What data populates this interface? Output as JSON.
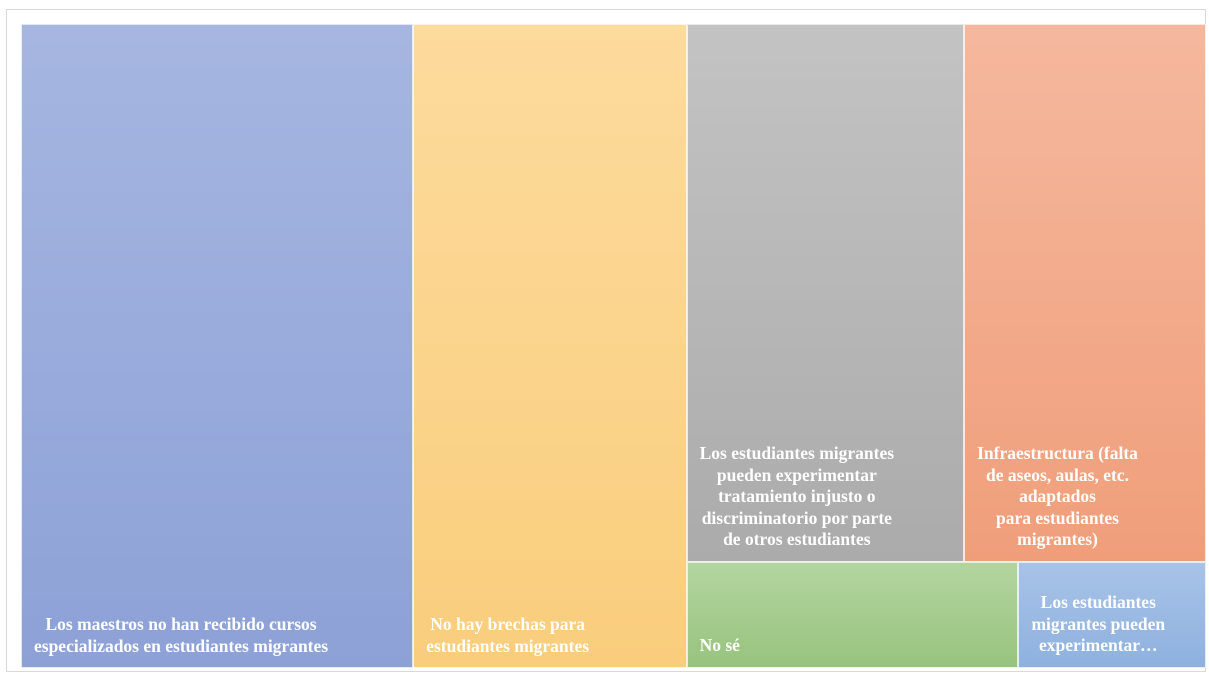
{
  "chart_data": {
    "type": "treemap",
    "categories": [
      "Los maestros no han recibido cursos\nespecializados en estudiantes migrantes",
      "No hay brechas para\nestudiantes migrantes",
      "Los estudiantes migrantes\npueden experimentar\ntratamiento injusto o\ndiscriminatorio por parte\nde otros estudiantes",
      "Infraestructura (falta\nde aseos, aulas, etc.\nadaptados\npara estudiantes\nmigrantes)",
      "No sé",
      "Los estudiantes\nmigrantes pueden\nexperimentar…"
    ],
    "values": [
      33,
      23,
      19.5,
      17,
      4.6,
      2.6
    ],
    "colors": [
      [
        "#a6b6e1",
        "#8da1d7"
      ],
      [
        "#fddb9d",
        "#f9cd7c"
      ],
      [
        "#c3c3c3",
        "#ababab"
      ],
      [
        "#f5b89e",
        "#f09e7a"
      ],
      [
        "#b3d5a0",
        "#98c37e"
      ],
      [
        "#a8c3e7",
        "#8eb1df"
      ]
    ]
  }
}
